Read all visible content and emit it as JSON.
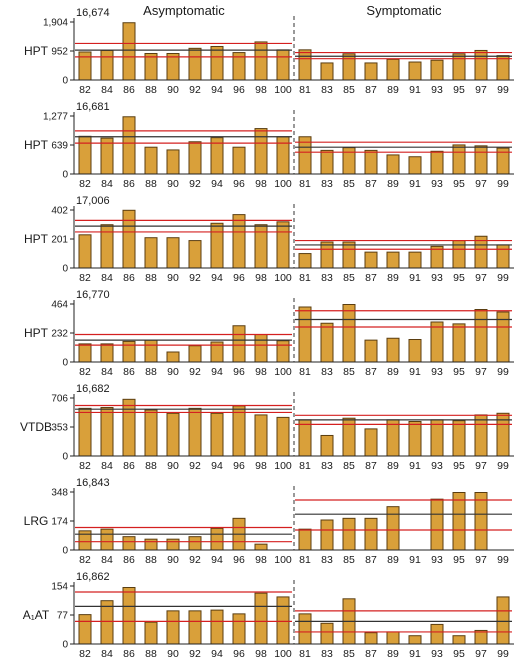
{
  "colors": {
    "bar_fill": "#d9a03a",
    "bar_stroke": "#5a3d10",
    "red_line": "#d42020",
    "dark_line": "#333333"
  },
  "groups": [
    {
      "label": "Asymptomatic",
      "ticks": [
        "82",
        "84",
        "86",
        "88",
        "90",
        "92",
        "94",
        "96",
        "98",
        "100"
      ]
    },
    {
      "label": "Symptomatic",
      "ticks": [
        "81",
        "83",
        "85",
        "87",
        "89",
        "91",
        "93",
        "95",
        "97",
        "99"
      ]
    }
  ],
  "chart_data": [
    {
      "type": "bar",
      "title": "16,674",
      "ylabel": "HPT",
      "ymax": 1904,
      "yticks": [
        "0",
        "952",
        "1,904"
      ],
      "series": [
        {
          "group": "Asymptomatic",
          "values": [
            920,
            970,
            1880,
            870,
            870,
            1040,
            1100,
            900,
            1250,
            990
          ],
          "red_lines": [
            1200,
            760
          ],
          "dark_lines": [
            980
          ]
        },
        {
          "group": "Symptomatic",
          "values": [
            990,
            560,
            860,
            560,
            680,
            590,
            650,
            860,
            970,
            800
          ],
          "red_lines": [
            900,
            700
          ],
          "dark_lines": [
            780
          ]
        }
      ]
    },
    {
      "type": "bar",
      "title": "16,681",
      "ylabel": "HPT",
      "ymax": 1277,
      "yticks": [
        "0",
        "639",
        "1,277"
      ],
      "series": [
        {
          "group": "Asymptomatic",
          "values": [
            830,
            790,
            1260,
            590,
            530,
            710,
            800,
            590,
            1000,
            820
          ],
          "red_lines": [
            950,
            680
          ],
          "dark_lines": [
            820
          ]
        },
        {
          "group": "Symptomatic",
          "values": [
            820,
            520,
            580,
            520,
            420,
            380,
            500,
            640,
            620,
            570
          ],
          "red_lines": [
            700,
            480
          ],
          "dark_lines": [
            590
          ]
        }
      ]
    },
    {
      "type": "bar",
      "title": "17,006",
      "ylabel": "HPT",
      "ymax": 402,
      "yticks": [
        "0",
        "201",
        "402"
      ],
      "series": [
        {
          "group": "Asymptomatic",
          "values": [
            230,
            300,
            400,
            210,
            210,
            190,
            310,
            370,
            300,
            320
          ],
          "red_lines": [
            330,
            250
          ],
          "dark_lines": [
            290
          ]
        },
        {
          "group": "Symptomatic",
          "values": [
            100,
            180,
            180,
            110,
            110,
            110,
            150,
            190,
            220,
            160
          ],
          "red_lines": [
            190,
            130
          ],
          "dark_lines": [
            160
          ]
        }
      ]
    },
    {
      "type": "bar",
      "title": "16,770",
      "ylabel": "HPT",
      "ymax": 464,
      "yticks": [
        "0",
        "232",
        "464"
      ],
      "series": [
        {
          "group": "Asymptomatic",
          "values": [
            145,
            145,
            165,
            175,
            80,
            130,
            160,
            290,
            220,
            170
          ],
          "red_lines": [
            220,
            135
          ],
          "dark_lines": [
            175
          ]
        },
        {
          "group": "Symptomatic",
          "values": [
            440,
            310,
            460,
            175,
            190,
            180,
            320,
            305,
            420,
            400
          ],
          "red_lines": [
            410,
            280
          ],
          "dark_lines": [
            340
          ]
        }
      ]
    },
    {
      "type": "bar",
      "title": "16,682",
      "ylabel": "VTDB",
      "ymax": 706,
      "yticks": [
        "0",
        "353",
        "706"
      ],
      "series": [
        {
          "group": "Asymptomatic",
          "values": [
            580,
            590,
            690,
            560,
            520,
            580,
            520,
            610,
            500,
            470
          ],
          "red_lines": [
            615,
            530
          ],
          "dark_lines": [
            570
          ]
        },
        {
          "group": "Symptomatic",
          "values": [
            440,
            250,
            460,
            330,
            440,
            420,
            440,
            430,
            500,
            520
          ],
          "red_lines": [
            495,
            385
          ],
          "dark_lines": [
            440
          ]
        }
      ]
    },
    {
      "type": "bar",
      "title": "16,843",
      "ylabel": "LRG",
      "ymax": 348,
      "yticks": [
        "0",
        "174",
        "348"
      ],
      "series": [
        {
          "group": "Asymptomatic",
          "values": [
            115,
            125,
            80,
            65,
            65,
            80,
            130,
            190,
            35,
            0
          ],
          "red_lines": [
            135,
            50
          ],
          "dark_lines": [
            95
          ]
        },
        {
          "group": "Symptomatic",
          "values": [
            125,
            180,
            190,
            190,
            260,
            0,
            305,
            345,
            345,
            0
          ],
          "red_lines": [
            300,
            120
          ],
          "dark_lines": [
            215
          ]
        }
      ]
    },
    {
      "type": "bar",
      "title": "16,862",
      "ylabel": "A₁AT",
      "ymax": 154,
      "yticks": [
        "0",
        "77",
        "154"
      ],
      "series": [
        {
          "group": "Asymptomatic",
          "values": [
            78,
            115,
            150,
            58,
            88,
            88,
            90,
            80,
            135,
            125
          ],
          "red_lines": [
            138,
            60
          ],
          "dark_lines": [
            100
          ]
        },
        {
          "group": "Symptomatic",
          "values": [
            80,
            55,
            120,
            30,
            32,
            22,
            52,
            22,
            36,
            125
          ],
          "red_lines": [
            88,
            32
          ],
          "dark_lines": [
            60
          ]
        }
      ]
    }
  ]
}
